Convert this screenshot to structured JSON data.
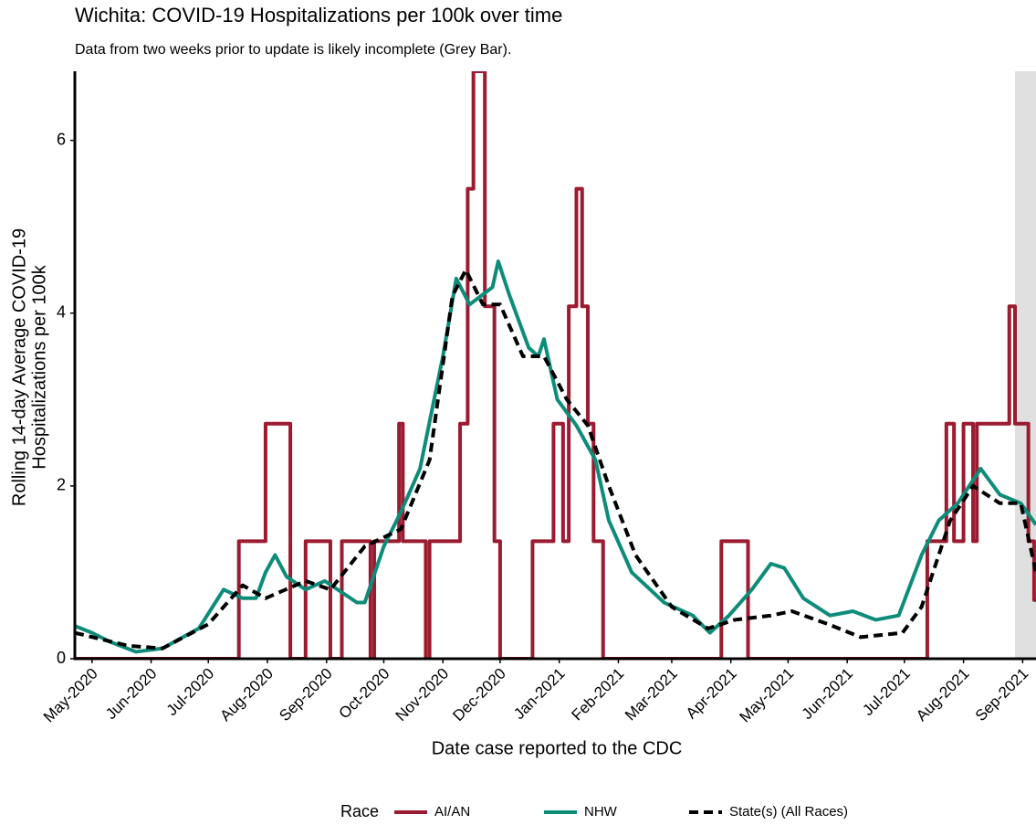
{
  "chart_data": {
    "type": "line",
    "title": "Wichita: COVID-19 Hospitalizations per 100k over time",
    "subtitle": "Data from two weeks prior to update is likely incomplete (Grey Bar).",
    "xlabel": "Date case reported to the CDC",
    "ylabel": [
      "Rolling 14-day Average COVID-19",
      "Hospitalizations per 100k"
    ],
    "legend_title": "Race",
    "legend": "bottom",
    "xlim": [
      "2020-04-22",
      "2021-09-08"
    ],
    "xticks": [
      {
        "value": "2020-05-01",
        "label": "May-2020"
      },
      {
        "value": "2020-06-01",
        "label": "Jun-2020"
      },
      {
        "value": "2020-07-01",
        "label": "Jul-2020"
      },
      {
        "value": "2020-08-01",
        "label": "Aug-2020"
      },
      {
        "value": "2020-09-01",
        "label": "Sep-2020"
      },
      {
        "value": "2020-10-01",
        "label": "Oct-2020"
      },
      {
        "value": "2020-11-01",
        "label": "Nov-2020"
      },
      {
        "value": "2020-12-01",
        "label": "Dec-2020"
      },
      {
        "value": "2021-01-01",
        "label": "Jan-2021"
      },
      {
        "value": "2021-02-01",
        "label": "Feb-2021"
      },
      {
        "value": "2021-03-01",
        "label": "Mar-2021"
      },
      {
        "value": "2021-04-01",
        "label": "Apr-2021"
      },
      {
        "value": "2021-05-01",
        "label": "May-2021"
      },
      {
        "value": "2021-06-01",
        "label": "Jun-2021"
      },
      {
        "value": "2021-07-01",
        "label": "Jul-2021"
      },
      {
        "value": "2021-08-01",
        "label": "Aug-2021"
      },
      {
        "value": "2021-09-01",
        "label": "Sep-2021"
      }
    ],
    "ylim": [
      0,
      6.8
    ],
    "yticks": [
      0,
      2,
      4,
      6
    ],
    "grid": false,
    "shaded_region": {
      "from": "2021-08-28",
      "to": "2021-09-08",
      "color": "#e0e0e0"
    },
    "series": [
      {
        "name": "AI/AN",
        "color": "#9b1b30",
        "step": true,
        "dash": false,
        "x": [
          "2020-04-22",
          "2020-07-17",
          "2020-07-31",
          "2020-08-13",
          "2020-08-21",
          "2020-09-03",
          "2020-09-09",
          "2020-09-24",
          "2020-09-26",
          "2020-10-09",
          "2020-10-11",
          "2020-10-23",
          "2020-10-25",
          "2020-11-10",
          "2020-11-14",
          "2020-11-17",
          "2020-11-23",
          "2020-11-28",
          "2020-12-01",
          "2020-12-18",
          "2020-12-29",
          "2021-01-03",
          "2021-01-06",
          "2021-01-10",
          "2021-01-13",
          "2021-01-16",
          "2021-01-19",
          "2021-01-24",
          "2021-03-27",
          "2021-04-10",
          "2021-07-13",
          "2021-07-23",
          "2021-07-27",
          "2021-08-01",
          "2021-08-06",
          "2021-08-08",
          "2021-08-25",
          "2021-08-28",
          "2021-09-04",
          "2021-09-07"
        ],
        "values": [
          0,
          1.36,
          2.72,
          0,
          1.36,
          0,
          1.36,
          0,
          1.36,
          2.72,
          1.36,
          0,
          1.36,
          2.72,
          5.44,
          6.8,
          4.08,
          1.36,
          0,
          1.36,
          2.72,
          1.36,
          4.08,
          5.44,
          4.08,
          2.72,
          1.36,
          0,
          1.36,
          0,
          1.36,
          2.72,
          1.36,
          2.72,
          1.36,
          2.72,
          4.08,
          2.72,
          1.36,
          0.68
        ]
      },
      {
        "name": "NHW",
        "color": "#0e8c7a",
        "step": false,
        "dash": false,
        "x": [
          "2020-04-22",
          "2020-05-01",
          "2020-05-10",
          "2020-05-24",
          "2020-06-07",
          "2020-06-26",
          "2020-07-09",
          "2020-07-19",
          "2020-07-26",
          "2020-07-31",
          "2020-08-05",
          "2020-08-11",
          "2020-08-21",
          "2020-08-31",
          "2020-09-17",
          "2020-09-21",
          "2020-10-01",
          "2020-10-10",
          "2020-10-20",
          "2020-11-01",
          "2020-11-08",
          "2020-11-15",
          "2020-11-27",
          "2020-11-30",
          "2020-12-06",
          "2020-12-16",
          "2020-12-21",
          "2020-12-24",
          "2020-12-31",
          "2021-01-10",
          "2021-01-20",
          "2021-01-27",
          "2021-02-08",
          "2021-02-25",
          "2021-03-12",
          "2021-03-21",
          "2021-03-31",
          "2021-04-12",
          "2021-04-22",
          "2021-04-29",
          "2021-05-09",
          "2021-05-23",
          "2021-06-04",
          "2021-06-16",
          "2021-06-28",
          "2021-07-10",
          "2021-07-19",
          "2021-07-29",
          "2021-08-10",
          "2021-08-20",
          "2021-08-31",
          "2021-09-08"
        ],
        "values": [
          0.38,
          0.3,
          0.2,
          0.08,
          0.12,
          0.35,
          0.8,
          0.7,
          0.7,
          1.0,
          1.2,
          0.95,
          0.8,
          0.9,
          0.65,
          0.65,
          1.3,
          1.7,
          2.2,
          3.5,
          4.4,
          4.1,
          4.3,
          4.6,
          4.2,
          3.6,
          3.5,
          3.7,
          3.0,
          2.7,
          2.3,
          1.6,
          1.0,
          0.65,
          0.5,
          0.3,
          0.5,
          0.8,
          1.1,
          1.05,
          0.7,
          0.5,
          0.55,
          0.45,
          0.5,
          1.2,
          1.6,
          1.8,
          2.2,
          1.9,
          1.8,
          1.55
        ]
      },
      {
        "name": "State(s) (All Races)",
        "color": "#000000",
        "step": false,
        "dash": true,
        "x": [
          "2020-04-22",
          "2020-05-20",
          "2020-06-07",
          "2020-07-01",
          "2020-07-19",
          "2020-07-31",
          "2020-08-21",
          "2020-09-03",
          "2020-09-21",
          "2020-10-10",
          "2020-10-25",
          "2020-11-06",
          "2020-11-13",
          "2020-11-22",
          "2020-12-01",
          "2020-12-13",
          "2020-12-24",
          "2021-01-05",
          "2021-01-16",
          "2021-01-27",
          "2021-02-10",
          "2021-03-01",
          "2021-03-20",
          "2021-04-03",
          "2021-04-22",
          "2021-05-03",
          "2021-05-22",
          "2021-06-08",
          "2021-06-30",
          "2021-07-10",
          "2021-07-25",
          "2021-08-06",
          "2021-08-20",
          "2021-08-31",
          "2021-09-08"
        ],
        "values": [
          0.3,
          0.15,
          0.12,
          0.4,
          0.85,
          0.7,
          0.9,
          0.8,
          1.3,
          1.5,
          2.3,
          4.2,
          4.5,
          4.1,
          4.1,
          3.5,
          3.5,
          3.0,
          2.7,
          2.0,
          1.2,
          0.6,
          0.35,
          0.45,
          0.5,
          0.55,
          0.4,
          0.25,
          0.3,
          0.6,
          1.6,
          2.0,
          1.8,
          1.8,
          1.0
        ]
      }
    ]
  }
}
